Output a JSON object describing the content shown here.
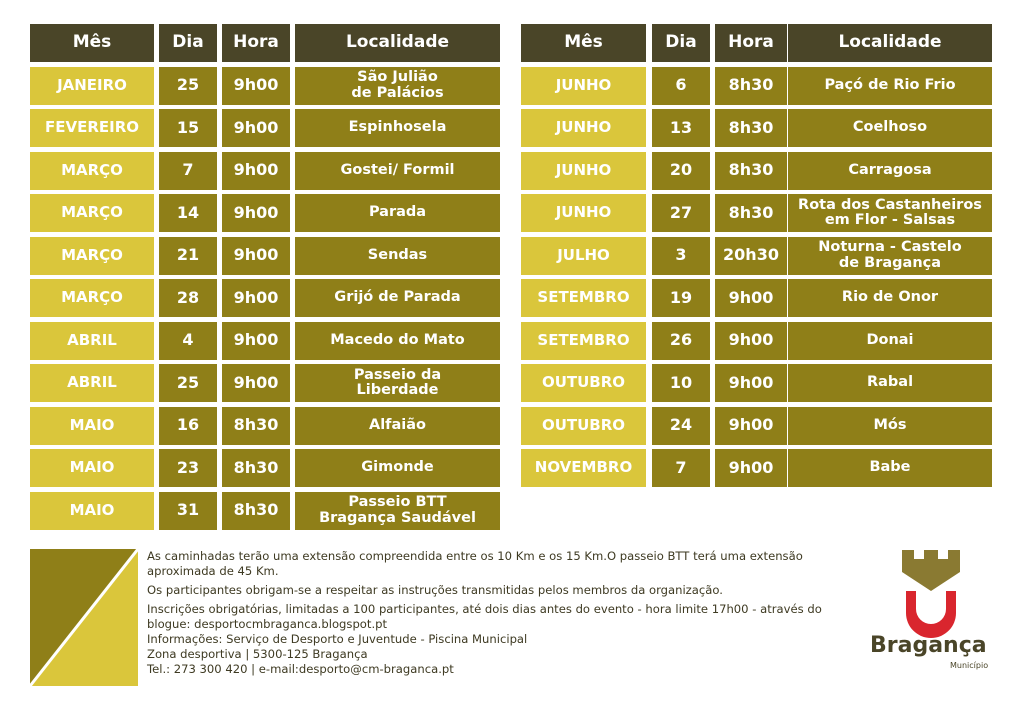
{
  "headers": {
    "mes": "Mês",
    "dia": "Dia",
    "hora": "Hora",
    "localidade": "Localidade"
  },
  "left_rows": [
    {
      "mes": "JANEIRO",
      "dia": "25",
      "hora": "9h00",
      "loc": "São Julião\nde Palácios"
    },
    {
      "mes": "FEVEREIRO",
      "dia": "15",
      "hora": "9h00",
      "loc": "Espinhosela"
    },
    {
      "mes": "MARÇO",
      "dia": "7",
      "hora": "9h00",
      "loc": "Gostei/ Formil"
    },
    {
      "mes": "MARÇO",
      "dia": "14",
      "hora": "9h00",
      "loc": "Parada"
    },
    {
      "mes": "MARÇO",
      "dia": "21",
      "hora": "9h00",
      "loc": "Sendas"
    },
    {
      "mes": "MARÇO",
      "dia": "28",
      "hora": "9h00",
      "loc": "Grijó de Parada"
    },
    {
      "mes": "ABRIL",
      "dia": "4",
      "hora": "9h00",
      "loc": "Macedo do Mato"
    },
    {
      "mes": "ABRIL",
      "dia": "25",
      "hora": "9h00",
      "loc": "Passeio da\nLiberdade"
    },
    {
      "mes": "MAIO",
      "dia": "16",
      "hora": "8h30",
      "loc": "Alfaião"
    },
    {
      "mes": "MAIO",
      "dia": "23",
      "hora": "8h30",
      "loc": "Gimonde"
    },
    {
      "mes": "MAIO",
      "dia": "31",
      "hora": "8h30",
      "loc": "Passeio BTT\nBragança Saudável"
    }
  ],
  "right_rows": [
    {
      "mes": "JUNHO",
      "dia": "6",
      "hora": "8h30",
      "loc": "Paçó de Rio Frio"
    },
    {
      "mes": "JUNHO",
      "dia": "13",
      "hora": "8h30",
      "loc": "Coelhoso"
    },
    {
      "mes": "JUNHO",
      "dia": "20",
      "hora": "8h30",
      "loc": "Carragosa"
    },
    {
      "mes": "JUNHO",
      "dia": "27",
      "hora": "8h30",
      "loc": "Rota dos Castanheiros\nem Flor - Salsas"
    },
    {
      "mes": "JULHO",
      "dia": "3",
      "hora": "20h30",
      "loc": "Noturna - Castelo\nde Bragança"
    },
    {
      "mes": "SETEMBRO",
      "dia": "19",
      "hora": "9h00",
      "loc": "Rio de Onor"
    },
    {
      "mes": "SETEMBRO",
      "dia": "26",
      "hora": "9h00",
      "loc": "Donai"
    },
    {
      "mes": "OUTUBRO",
      "dia": "10",
      "hora": "9h00",
      "loc": "Rabal"
    },
    {
      "mes": "OUTUBRO",
      "dia": "24",
      "hora": "9h00",
      "loc": "Mós"
    },
    {
      "mes": "NOVEMBRO",
      "dia": "7",
      "hora": "9h00",
      "loc": "Babe"
    }
  ],
  "info": {
    "p1_a": "As caminhadas terão uma extensão compreendida entre os ",
    "p1_b": "10 Km e os 15 Km",
    "p1_c": ".O passeio BTT terá uma extensão aproximada de 45 Km.",
    "p2": "Os participantes obrigam-se a respeitar as instruções transmitidas pelos membros da organização.",
    "p3": "Inscrições obrigatórias, limitadas a 100 participantes, até dois dias antes do evento - hora limite 17h00 - através do blogue: desportocmbraganca.blogspot.pt",
    "p4": "Informações: Serviço de Desporto e Juventude - Piscina Municipal",
    "p5": "Zona desportiva | 5300-125 Bragança",
    "p6": "Tel.: 273 300 420 | e-mail:desporto@cm-braganca.pt"
  },
  "logo": {
    "name": "Bragança",
    "sub": "Município"
  },
  "colors": {
    "header": "#4a4528",
    "month": "#dac63b",
    "value": "#8f7f18",
    "red": "#d9262e"
  }
}
